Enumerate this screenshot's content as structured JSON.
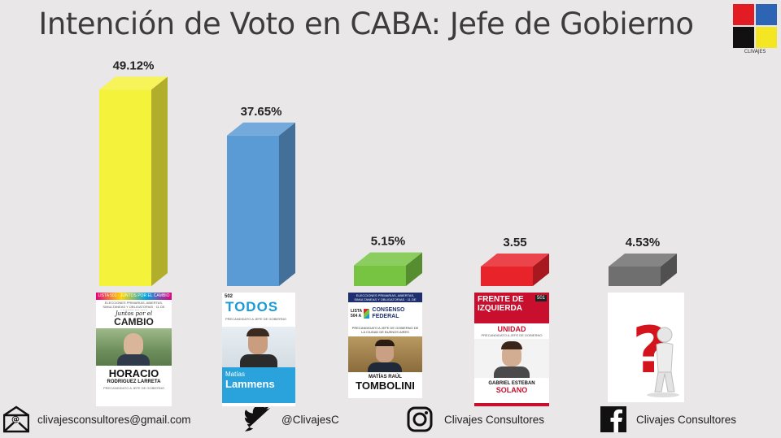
{
  "title": "Intención de Voto en CABA: Jefe de Gobierno",
  "logo": {
    "text": "CLIVAJES",
    "colors": [
      "#e31b23",
      "#2e64b4",
      "#111111",
      "#f5e623"
    ]
  },
  "chart_data": {
    "type": "bar",
    "title": "Intención de Voto en CABA: Jefe de Gobierno",
    "values": [
      49.12,
      37.65,
      5.15,
      3.55,
      4.53
    ],
    "value_labels": [
      "49.12%",
      "37.65%",
      "5.15%",
      "3.55",
      "4.53%"
    ],
    "colors": [
      "#f4f23a",
      "#5b9bd5",
      "#76c442",
      "#e8232a",
      "#6f6f6f"
    ],
    "style": "3d",
    "ylim": [
      0,
      50
    ],
    "grid": false
  },
  "cards": [
    {
      "strip": "LISTA 501 · JUNTOS POR EL CAMBIO",
      "header": "ELECCIONES PRIMARIAS, ABIERTAS, SIMULTANEAS Y OBLIGATORIAS · 11 DE AGOSTO DE 2019",
      "party": "Juntos por el",
      "party2": "CAMBIO",
      "name1": "HORACIO",
      "name2": "RODRIGUEZ LARRETA",
      "role": "PRECANDIDATO A JEFE DE GOBIERNO"
    },
    {
      "list_no": "502",
      "party": "TODOS",
      "subtitle": "PRECANDIDATO A JEFE DE GOBIERNO",
      "name1": "Matías",
      "name2": "Lammens"
    },
    {
      "header": "ELECCIONES PRIMARIAS, ABIERTAS, SIMULTANEAS Y OBLIGATORIAS · 11 DE AGOSTO DE 2019",
      "list_no": "LISTA 504 A",
      "party": "CONSENSO FEDERAL",
      "role": "PRECANDIDATO A JEFE DE GOBIERNO DE LA CIUDAD DE BUENOS AIRES",
      "name1": "MATÍAS RAÚL",
      "name2": "TOMBOLINI"
    },
    {
      "party1": "FRENTE DE",
      "party2": "IZQUIERDA",
      "list_no": "501",
      "sub": "UNIDAD",
      "role": "PRECANDIDATO A JEFE DE GOBIERNO",
      "name1": "GABRIEL ESTEBAN",
      "name2": "SOLANO"
    },
    {
      "symbol": "?"
    }
  ],
  "footer": {
    "email": "clivajesconsultores@gmail.com",
    "twitter": "@ClivajesC",
    "instagram": "Clivajes Consultores",
    "facebook": "Clivajes Consultores"
  }
}
